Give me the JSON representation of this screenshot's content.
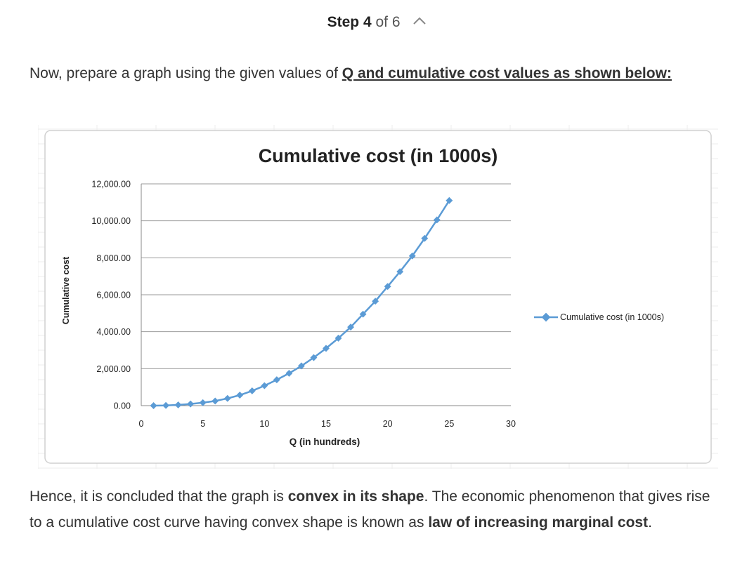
{
  "step": {
    "word": "Step",
    "number": "4",
    "of": "of",
    "total": "6"
  },
  "intro": {
    "text_before": "Now, prepare a graph using the given values of ",
    "emphasis": "Q and cumulative cost values as shown below:"
  },
  "conclusion": {
    "t1": "Hence, it is concluded that the graph is ",
    "b1": "convex in its shape",
    "t2": ". The economic phenomenon that gives rise to a cumulative cost curve having convex shape is known as ",
    "b2": "law of increasing marginal cost",
    "t3": "."
  },
  "chart_data": {
    "type": "line",
    "title": "Cumulative cost (in 1000s)",
    "xlabel": "Q (in hundreds)",
    "ylabel": "Cumulative cost",
    "xlim": [
      0,
      30
    ],
    "ylim": [
      0,
      12000
    ],
    "x_ticks": [
      "0",
      "5",
      "10",
      "15",
      "20",
      "25",
      "30"
    ],
    "y_ticks": [
      "0.00",
      "2,000.00",
      "4,000.00",
      "6,000.00",
      "8,000.00",
      "10,000.00",
      "12,000.00"
    ],
    "grid": "horizontal",
    "legend_position": "right",
    "series": [
      {
        "name": "Cumulative cost (in 1000s)",
        "color": "#5b9bd5",
        "x": [
          1,
          2,
          3,
          4,
          5,
          6,
          7,
          8,
          9,
          10,
          11,
          12,
          13,
          14,
          15,
          16,
          17,
          18,
          19,
          20,
          21,
          22,
          23,
          24,
          25
        ],
        "y": [
          0,
          10,
          40,
          90,
          160,
          250,
          390,
          570,
          800,
          1080,
          1400,
          1750,
          2150,
          2600,
          3100,
          3650,
          4250,
          4950,
          5650,
          6450,
          7250,
          8100,
          9050,
          10050,
          11100
        ]
      }
    ]
  }
}
